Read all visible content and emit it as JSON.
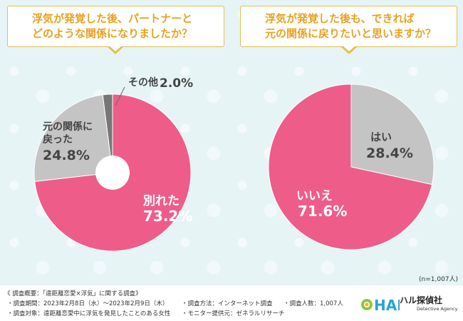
{
  "questions": {
    "left_line1": "浮気が発覚した後、パートナーと",
    "left_line2": "どのような関係になりましたか？",
    "right_line1": "浮気が発覚した後も、できれば",
    "right_line2": "元の関係に戻りたいと思いますか？"
  },
  "chart_data": [
    {
      "type": "pie",
      "title": "浮気が発覚した後、パートナーとどのような関係になりましたか？",
      "variant": "donut",
      "slices": [
        {
          "label": "別れた",
          "value": 73.2,
          "display": "73.2%",
          "color": "#ee5c8a"
        },
        {
          "label": "元の関係に戻った",
          "value": 24.8,
          "display": "24.8%",
          "color": "#c4c4c4"
        },
        {
          "label": "その他",
          "value": 2.0,
          "display": "2.0%",
          "color": "#777777"
        }
      ]
    },
    {
      "type": "pie",
      "title": "浮気が発覚した後も、できれば元の関係に戻りたいと思いますか？",
      "slices": [
        {
          "label": "はい",
          "value": 28.4,
          "display": "28.4%",
          "color": "#c4c4c4"
        },
        {
          "label": "いいえ",
          "value": 71.6,
          "display": "71.6%",
          "color": "#ee5c8a"
        }
      ]
    }
  ],
  "labels": {
    "left_sono": "その他",
    "left_sono_pct": "2.0%",
    "left_moto_l1": "元の関係に",
    "left_moto_l2": "戻った",
    "left_moto_pct": "24.8%",
    "left_wakare": "別れた",
    "left_wakare_pct": "73.2%",
    "right_hai": "はい",
    "right_hai_pct": "28.4%",
    "right_iie": "いいえ",
    "right_iie_pct": "71.6%"
  },
  "sample_note": "(n=1,007人)",
  "footer": {
    "overview": "《 調査概要：「遠距離恋愛×浮気」に関する調査》",
    "period": "・調査期間：2023年2月8日（水）～2023年2月9日（木）",
    "target": "・調査対象：遠距離恋愛中に浮気を発見したことのある女性",
    "method": "・調査方法：インターネット調査",
    "provider": "・モニター提供元：ゼネラルリサーチ",
    "count": "・調査人数：1,007人"
  },
  "logo": {
    "name": "ハル探偵社",
    "sub": "Detective Agency",
    "mark": "HAL"
  }
}
